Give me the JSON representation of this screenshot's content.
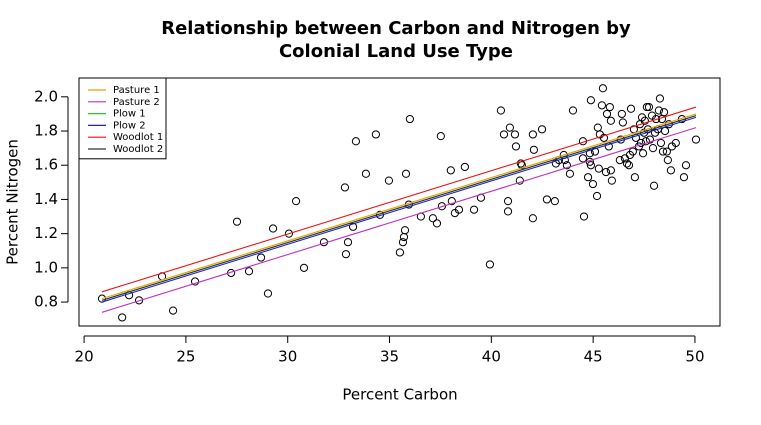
{
  "chart_data": {
    "type": "scatter",
    "title": [
      "Relationship between Carbon and Nitrogen by",
      "Colonial Land Use Type"
    ],
    "xlabel": "Percent Carbon",
    "ylabel": "Percent Nitrogen",
    "xlim": [
      19.75,
      51.23
    ],
    "ylim": [
      0.66,
      2.11
    ],
    "xticks": [
      20,
      25,
      30,
      35,
      40,
      45,
      50
    ],
    "yticks": [
      0.8,
      {
        "value": 1,
        "label": "1.0"
      },
      1.2,
      1.4,
      1.6,
      1.8,
      {
        "value": 2,
        "label": "2.0"
      }
    ],
    "legend": "top-left",
    "x": [
      20.88,
      21.87,
      22.21,
      22.7,
      23.83,
      24.37,
      25.45,
      27.22,
      27.51,
      28.1,
      28.69,
      29.03,
      29.28,
      30.06,
      30.41,
      30.8,
      31.78,
      32.81,
      32.86,
      32.96,
      33.21,
      33.35,
      33.84,
      34.33,
      34.53,
      34.97,
      35.51,
      35.66,
      35.71,
      35.76,
      35.81,
      35.95,
      36.0,
      36.54,
      37.13,
      37.33,
      37.52,
      37.57,
      38.01,
      38.06,
      38.21,
      38.41,
      38.7,
      39.15,
      39.49,
      39.93,
      40.47,
      40.62,
      40.82,
      40.82,
      40.91,
      41.16,
      41.21,
      41.4,
      41.45,
      41.5,
      42.04,
      42.04,
      42.09,
      42.49,
      42.73,
      43.12,
      43.17,
      43.32,
      43.56,
      43.61,
      43.71,
      43.86,
      44.01,
      44.5,
      44.5,
      44.55,
      44.75,
      44.84,
      44.84,
      44.89,
      44.89,
      44.99,
      45.09,
      45.19,
      45.23,
      45.28,
      45.33,
      45.43,
      45.48,
      45.53,
      45.63,
      45.68,
      45.77,
      45.82,
      45.87,
      45.87,
      45.92,
      46.31,
      46.36,
      46.41,
      46.46,
      46.56,
      46.66,
      46.76,
      46.81,
      46.86,
      46.95,
      47.0,
      47.05,
      47.1,
      47.25,
      47.3,
      47.35,
      47.4,
      47.45,
      47.5,
      47.54,
      47.59,
      47.64,
      47.69,
      47.74,
      47.79,
      47.89,
      47.94,
      47.99,
      48.04,
      48.09,
      48.18,
      48.23,
      48.28,
      48.33,
      48.38,
      48.43,
      48.48,
      48.53,
      48.62,
      48.67,
      48.72,
      48.82,
      48.87,
      49.06,
      49.36,
      49.46,
      49.56,
      50.05
    ],
    "values": [
      0.82,
      0.71,
      0.84,
      0.81,
      0.95,
      0.75,
      0.92,
      0.97,
      1.27,
      0.98,
      1.06,
      0.85,
      1.23,
      1.2,
      1.39,
      1.0,
      1.15,
      1.47,
      1.08,
      1.15,
      1.24,
      1.74,
      1.55,
      1.78,
      1.31,
      1.51,
      1.09,
      1.15,
      1.18,
      1.22,
      1.55,
      1.37,
      1.87,
      1.3,
      1.29,
      1.26,
      1.77,
      1.36,
      1.57,
      1.39,
      1.32,
      1.34,
      1.59,
      1.34,
      1.41,
      1.02,
      1.92,
      1.78,
      1.39,
      1.33,
      1.82,
      1.78,
      1.71,
      1.51,
      1.61,
      1.6,
      1.29,
      1.78,
      1.69,
      1.81,
      1.4,
      1.39,
      1.61,
      1.63,
      1.66,
      1.63,
      1.6,
      1.55,
      1.92,
      1.74,
      1.64,
      1.3,
      1.53,
      1.67,
      1.62,
      1.98,
      1.6,
      1.49,
      1.68,
      1.42,
      1.82,
      1.58,
      1.78,
      1.95,
      2.05,
      1.76,
      1.56,
      1.9,
      1.71,
      1.94,
      1.57,
      1.86,
      1.51,
      1.63,
      1.75,
      1.9,
      1.85,
      1.64,
      1.61,
      1.6,
      1.66,
      1.93,
      1.68,
      1.81,
      1.53,
      1.76,
      1.71,
      1.84,
      1.73,
      1.88,
      1.67,
      1.79,
      1.86,
      1.74,
      1.94,
      1.81,
      1.94,
      1.75,
      1.89,
      1.7,
      1.48,
      1.79,
      1.87,
      1.81,
      1.92,
      1.99,
      1.73,
      1.87,
      1.68,
      1.91,
      1.8,
      1.68,
      1.63,
      1.84,
      1.57,
      1.71,
      1.73,
      1.87,
      1.53,
      1.6,
      1.75
    ],
    "lines": [
      {
        "name": "Pasture 1",
        "color": "#e6a000",
        "x": [
          20.88,
          50.05
        ],
        "values": [
          0.82,
          1.9
        ]
      },
      {
        "name": "Pasture 2",
        "color": "#c030c0",
        "x": [
          20.88,
          50.05
        ],
        "values": [
          0.74,
          1.82
        ]
      },
      {
        "name": "Plow 1",
        "color": "#22cc22",
        "x": [
          20.88,
          50.05
        ],
        "values": [
          0.81,
          1.89
        ]
      },
      {
        "name": "Plow 2",
        "color": "#2020dd",
        "x": [
          20.88,
          50.05
        ],
        "values": [
          0.8,
          1.88
        ]
      },
      {
        "name": "Woodlot 1",
        "color": "#ee1111",
        "x": [
          20.88,
          50.05
        ],
        "values": [
          0.86,
          1.94
        ]
      },
      {
        "name": "Woodlot 2",
        "color": "#333333",
        "x": [
          20.88,
          50.05
        ],
        "values": [
          0.81,
          1.89
        ]
      }
    ]
  }
}
